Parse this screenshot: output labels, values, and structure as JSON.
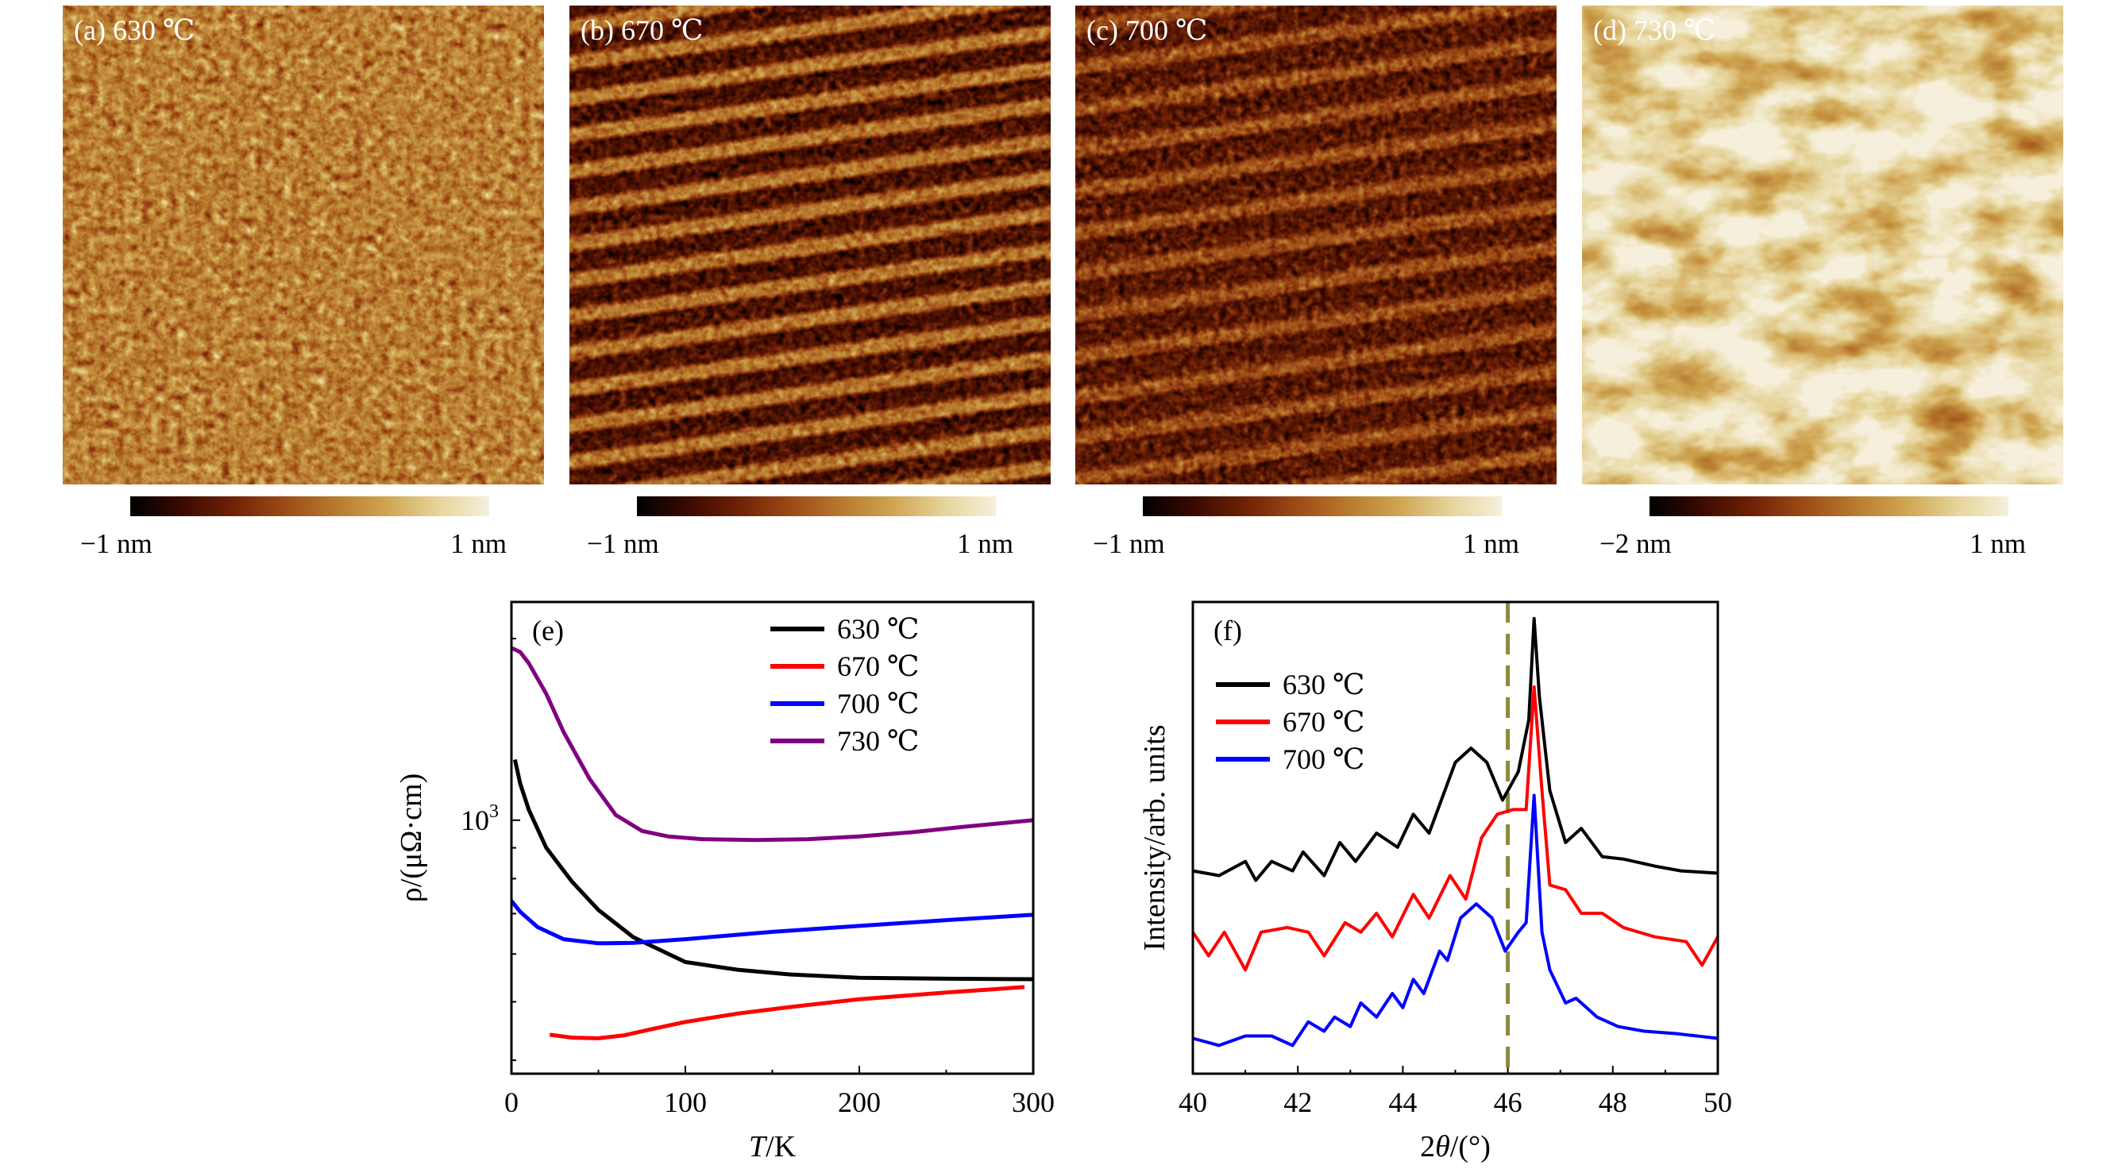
{
  "colormap": [
    "#000000",
    "#3a0a00",
    "#6e2206",
    "#9c4a16",
    "#b77a2e",
    "#cfa552",
    "#e6d49a",
    "#f6f0dc"
  ],
  "afm_panels": [
    {
      "label": "(a) 630 ℃",
      "scale_min": "−1 nm",
      "scale_max": "1 nm",
      "texture": "granular"
    },
    {
      "label": "(b) 670 ℃",
      "scale_min": "−1 nm",
      "scale_max": "1 nm",
      "texture": "step-stripes"
    },
    {
      "label": "(c) 700 ℃",
      "scale_min": "−1 nm",
      "scale_max": "1 nm",
      "texture": "step-stripes"
    },
    {
      "label": "(d) 730 ℃",
      "scale_min": "−2 nm",
      "scale_max": "1 nm",
      "texture": "islands"
    }
  ],
  "chart_data": [
    {
      "panel_label": "(e)",
      "type": "line",
      "xlabel_italic": "T",
      "xlabel_rest": "/K",
      "ylabel": "ρ/(μΩ·cm)",
      "xlim": [
        0,
        300
      ],
      "ylim": [
        380,
        2300
      ],
      "yscale": "log",
      "xticks": [
        0,
        100,
        200,
        300
      ],
      "xtick_labels": [
        "0",
        "100",
        "200",
        "300"
      ],
      "ytick_label_base": "10",
      "ytick_label_exp": "3",
      "legend_placement": "top-right",
      "series": [
        {
          "name": "630 ℃",
          "color": "#000000",
          "x": [
            2,
            5,
            10,
            20,
            35,
            50,
            70,
            100,
            130,
            160,
            200,
            250,
            300
          ],
          "y": [
            1260,
            1150,
            1040,
            900,
            790,
            710,
            640,
            582,
            565,
            555,
            548,
            546,
            545
          ]
        },
        {
          "name": "670 ℃",
          "color": "#ff0000",
          "x": [
            22,
            35,
            50,
            65,
            80,
            100,
            130,
            160,
            200,
            250,
            295
          ],
          "y": [
            441,
            436,
            435,
            440,
            450,
            463,
            478,
            490,
            505,
            518,
            529
          ]
        },
        {
          "name": "700 ℃",
          "color": "#0000ff",
          "x": [
            0,
            5,
            15,
            30,
            50,
            70,
            100,
            150,
            200,
            250,
            300
          ],
          "y": [
            735,
            705,
            665,
            635,
            625,
            626,
            635,
            653,
            668,
            683,
            697
          ]
        },
        {
          "name": "730 ℃",
          "color": "#800080",
          "x": [
            0,
            5,
            10,
            20,
            30,
            45,
            60,
            75,
            90,
            110,
            140,
            170,
            200,
            230,
            260,
            300
          ],
          "y": [
            1930,
            1900,
            1820,
            1620,
            1400,
            1170,
            1020,
            960,
            940,
            930,
            927,
            930,
            940,
            955,
            975,
            1000
          ]
        }
      ]
    },
    {
      "panel_label": "(f)",
      "type": "line",
      "xlabel_prefix": "2",
      "xlabel_italic": "θ",
      "xlabel_rest": "/(°)",
      "ylabel": "Intensity/arb. units",
      "xlim": [
        40,
        50
      ],
      "ylim": [
        0,
        1
      ],
      "xticks": [
        40,
        42,
        44,
        46,
        48,
        50
      ],
      "xtick_labels": [
        "40",
        "42",
        "44",
        "46",
        "48",
        "50"
      ],
      "reference_line": {
        "x": 46,
        "style": "dashed",
        "color": "#8a8a3c"
      },
      "legend_placement": "top-left",
      "series": [
        {
          "name": "630 ℃",
          "color": "#000000",
          "x": [
            40,
            40.5,
            41,
            41.2,
            41.5,
            41.9,
            42.1,
            42.5,
            42.8,
            43.1,
            43.5,
            43.9,
            44.2,
            44.5,
            44.8,
            45.0,
            45.3,
            45.6,
            45.9,
            46.2,
            46.4,
            46.5,
            46.6,
            46.8,
            47.1,
            47.4,
            47.8,
            48.2,
            48.8,
            49.3,
            50
          ],
          "y": [
            0.43,
            0.42,
            0.45,
            0.41,
            0.45,
            0.43,
            0.47,
            0.42,
            0.49,
            0.45,
            0.51,
            0.48,
            0.55,
            0.51,
            0.6,
            0.66,
            0.69,
            0.66,
            0.58,
            0.64,
            0.75,
            0.965,
            0.8,
            0.6,
            0.49,
            0.52,
            0.46,
            0.455,
            0.44,
            0.43,
            0.425
          ]
        },
        {
          "name": "670 ℃",
          "color": "#ff0000",
          "x": [
            40,
            40.3,
            40.6,
            41,
            41.3,
            41.8,
            42.2,
            42.5,
            42.9,
            43.2,
            43.5,
            43.8,
            44.2,
            44.5,
            44.9,
            45.2,
            45.5,
            45.8,
            46.1,
            46.35,
            46.5,
            46.65,
            46.8,
            47.1,
            47.4,
            47.8,
            48.2,
            48.8,
            49.4,
            49.7,
            50
          ],
          "y": [
            0.3,
            0.25,
            0.3,
            0.22,
            0.3,
            0.31,
            0.3,
            0.25,
            0.32,
            0.3,
            0.34,
            0.29,
            0.38,
            0.33,
            0.42,
            0.37,
            0.5,
            0.55,
            0.56,
            0.56,
            0.82,
            0.6,
            0.4,
            0.39,
            0.34,
            0.34,
            0.31,
            0.29,
            0.28,
            0.23,
            0.29
          ]
        },
        {
          "name": "700 ℃",
          "color": "#0000ff",
          "x": [
            40,
            40.5,
            41,
            41.5,
            41.9,
            42.2,
            42.5,
            42.7,
            43,
            43.2,
            43.5,
            43.8,
            44,
            44.2,
            44.4,
            44.7,
            44.85,
            45.1,
            45.4,
            45.7,
            45.95,
            46.2,
            46.35,
            46.5,
            46.65,
            46.8,
            47.1,
            47.3,
            47.7,
            48.1,
            48.6,
            49.2,
            50
          ],
          "y": [
            0.075,
            0.06,
            0.08,
            0.08,
            0.06,
            0.11,
            0.09,
            0.12,
            0.1,
            0.15,
            0.12,
            0.17,
            0.14,
            0.2,
            0.17,
            0.26,
            0.24,
            0.33,
            0.36,
            0.33,
            0.26,
            0.3,
            0.32,
            0.59,
            0.3,
            0.22,
            0.15,
            0.16,
            0.12,
            0.1,
            0.09,
            0.085,
            0.075
          ]
        }
      ]
    }
  ]
}
